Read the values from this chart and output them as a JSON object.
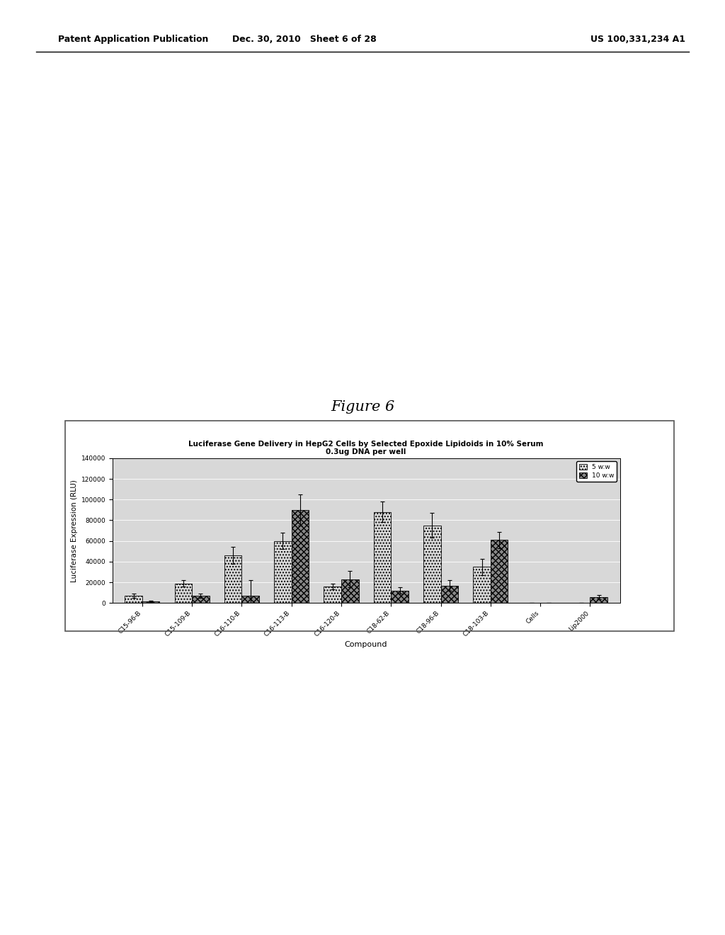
{
  "title_line1": "Luciferase Gene Delivery in HepG2 Cells by Selected Epoxide Lipidoids in 10% Serum",
  "title_line2": "0.3ug DNA per well",
  "xlabel": "Compound",
  "ylabel": "Luciferase Expression (RLU)",
  "figure_title": "Figure 6",
  "categories": [
    "C15-96-B",
    "C15-109-B",
    "C16-110-B",
    "C16-113-B",
    "C16-120-B",
    "C18-62-B",
    "C18-96-B",
    "C18-103-B",
    "Cells",
    "Lip2000"
  ],
  "values_5ww": [
    7000,
    19000,
    46000,
    60000,
    16000,
    88000,
    75000,
    35000,
    0,
    0
  ],
  "values_10ww": [
    1500,
    7000,
    7000,
    90000,
    23000,
    12000,
    17000,
    61000,
    0,
    6000
  ],
  "errors_5ww": [
    2000,
    3000,
    8000,
    8000,
    3000,
    10000,
    12000,
    8000,
    0,
    0
  ],
  "errors_10ww": [
    500,
    2000,
    15000,
    15000,
    8000,
    3000,
    5000,
    8000,
    0,
    2000
  ],
  "ylim": [
    0,
    140000
  ],
  "yticks": [
    0,
    20000,
    40000,
    60000,
    80000,
    100000,
    120000,
    140000
  ],
  "bar_width": 0.35,
  "color_5ww": "#d8d8d8",
  "color_10ww": "#888888",
  "hatch_5ww": "....",
  "hatch_10ww": "xxxx",
  "background_color": "#ffffff",
  "plot_bg_color": "#d8d8d8",
  "grid_color": "#ffffff",
  "legend_5ww": "5 w:w",
  "legend_10ww": "10 w:w",
  "border_color": "#000000",
  "header_text": "Patent Application Publication",
  "header_date": "Dec. 30, 2010",
  "header_sheet": "Sheet 6 of 28",
  "header_patent": "US 100,331,234 A1"
}
